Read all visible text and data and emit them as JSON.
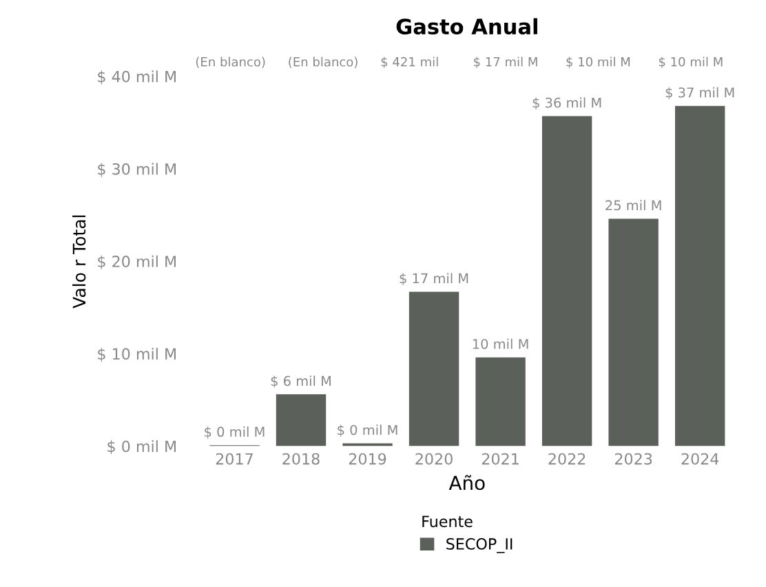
{
  "chart_data": {
    "type": "bar",
    "title": "Gasto Anual",
    "xlabel": "Año",
    "ylabel": "Valo r Total",
    "legend_title": "Fuente",
    "categories": [
      "2017",
      "2018",
      "2019",
      "2020",
      "2021",
      "2022",
      "2023",
      "2024"
    ],
    "series": [
      {
        "name": "SECOP_II",
        "color": "#5b605b",
        "values": [
          0.1,
          5.6,
          0.3,
          16.7,
          9.6,
          35.7,
          24.6,
          36.8
        ],
        "value_labels": [
          "$ 0 mil M",
          "$ 6 mil M",
          "$ 0 mil M",
          "$ 17 mil M",
          "10 mil M",
          "$ 36 mil M",
          "25 mil M",
          "$ 37 mil M"
        ]
      }
    ],
    "ylim": [
      0,
      40
    ],
    "yticks": [
      {
        "value": 0,
        "label": "$ 0 mil M"
      },
      {
        "value": 10,
        "label": "$ 10 mil M"
      },
      {
        "value": 20,
        "label": "$ 20 mil M"
      },
      {
        "value": 30,
        "label": "$ 30 mil M"
      },
      {
        "value": 40,
        "label": "$ 40 mil M"
      }
    ],
    "grid": false,
    "legend": "bottom",
    "annotations": [
      "(En blanco)",
      "(En blanco)",
      "$ 421 mil",
      "$ 17 mil M",
      "$ 10 mil M",
      "$ 10 mil M"
    ]
  }
}
